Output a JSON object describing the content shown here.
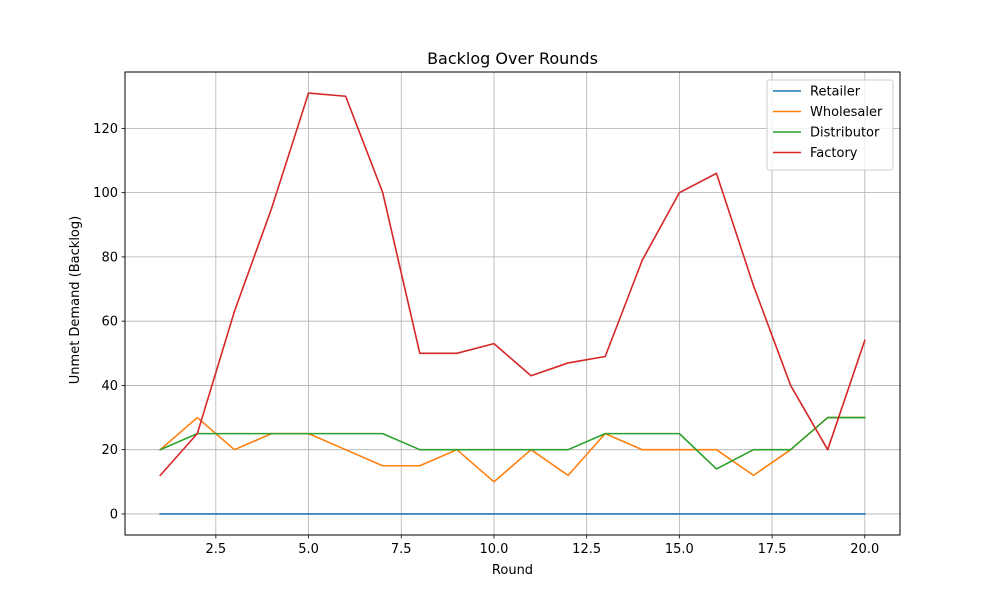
{
  "chart_data": {
    "type": "line",
    "title": "Backlog Over Rounds",
    "xlabel": "Round",
    "ylabel": "Unmet Demand (Backlog)",
    "xlim": [
      0.05,
      20.95
    ],
    "ylim": [
      -6.55,
      137.55
    ],
    "xticks": [
      2.5,
      5.0,
      7.5,
      10.0,
      12.5,
      15.0,
      17.5,
      20.0
    ],
    "xtick_labels": [
      "2.5",
      "5.0",
      "7.5",
      "10.0",
      "12.5",
      "15.0",
      "17.5",
      "20.0"
    ],
    "yticks": [
      0,
      20,
      40,
      60,
      80,
      100,
      120
    ],
    "ytick_labels": [
      "0",
      "20",
      "40",
      "60",
      "80",
      "100",
      "120"
    ],
    "grid": true,
    "legend_position": "top-right",
    "x": [
      1,
      2,
      3,
      4,
      5,
      6,
      7,
      8,
      9,
      10,
      11,
      12,
      13,
      14,
      15,
      16,
      17,
      18,
      19,
      20
    ],
    "series": [
      {
        "name": "Retailer",
        "color": "#1f77b4",
        "values": [
          0,
          0,
          0,
          0,
          0,
          0,
          0,
          0,
          0,
          0,
          0,
          0,
          0,
          0,
          0,
          0,
          0,
          0,
          0,
          0
        ]
      },
      {
        "name": "Wholesaler",
        "color": "#ff7f0e",
        "values": [
          20,
          30,
          20,
          25,
          25,
          20,
          15,
          15,
          20,
          10,
          20,
          12,
          25,
          20,
          20,
          20,
          12,
          20,
          30,
          30
        ]
      },
      {
        "name": "Distributor",
        "color": "#2ca02c",
        "values": [
          20,
          25,
          25,
          25,
          25,
          25,
          25,
          20,
          20,
          20,
          20,
          20,
          25,
          25,
          25,
          14,
          20,
          20,
          30,
          30
        ]
      },
      {
        "name": "Factory",
        "color": "#d62728",
        "values": [
          12,
          25,
          63,
          95,
          131,
          130,
          100,
          50,
          50,
          53,
          43,
          47,
          49,
          79,
          100,
          106,
          71,
          40,
          20,
          54
        ]
      }
    ]
  }
}
